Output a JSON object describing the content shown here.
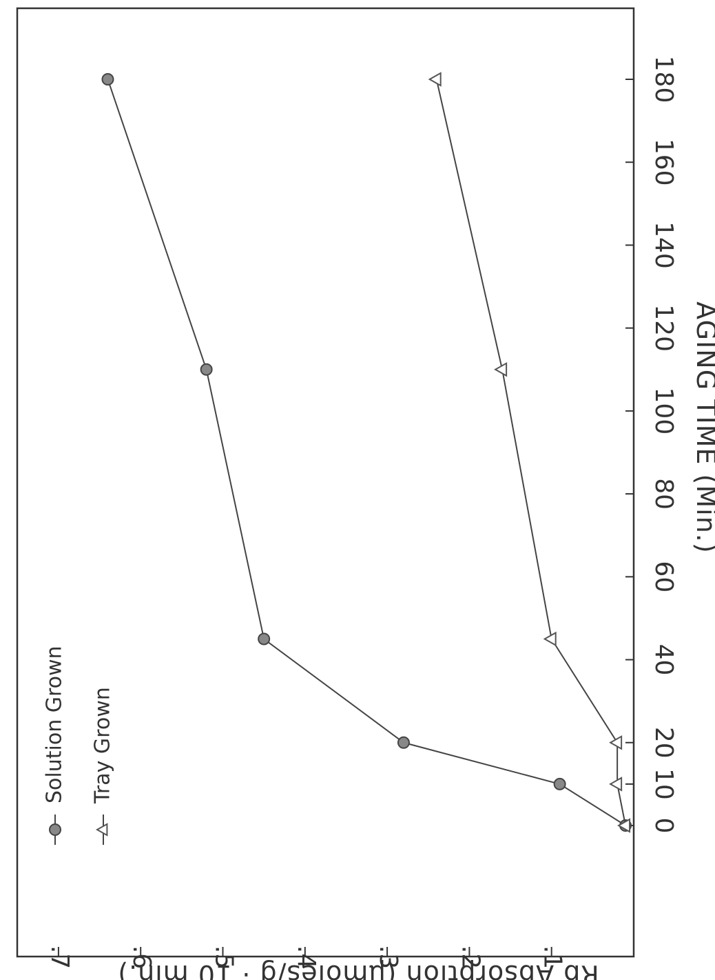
{
  "chart_data": {
    "type": "line",
    "title": "",
    "xlabel": "AGING TIME (Min.)",
    "ylabel": "Rb Absorption (μmoles/g · 10 min.)",
    "x_ticks": [
      0,
      10,
      20,
      40,
      60,
      80,
      100,
      120,
      140,
      160,
      180
    ],
    "x_tick_labels": [
      "0",
      "10",
      "20",
      "40",
      "60",
      "80",
      "100",
      "120",
      "140",
      "160",
      "180"
    ],
    "y_ticks": [
      0.1,
      0.2,
      0.3,
      0.4,
      0.5,
      0.6,
      0.7
    ],
    "y_tick_labels": [
      ".1",
      ".2",
      ".3",
      ".4",
      ".5",
      ".6",
      ".7"
    ],
    "xlim": [
      -8,
      195
    ],
    "ylim": [
      0,
      0.75
    ],
    "grid": false,
    "orientation": "rotated 90 degrees clockwise",
    "legend_position": "top-left",
    "series": [
      {
        "name": "Solution Grown",
        "marker": "circle-filled",
        "color": "#555555",
        "x": [
          0,
          10,
          20,
          45,
          110,
          180
        ],
        "y": [
          0.01,
          0.09,
          0.28,
          0.45,
          0.52,
          0.64
        ]
      },
      {
        "name": "Tray Grown",
        "marker": "triangle",
        "color": "#666666",
        "x": [
          0,
          10,
          20,
          45,
          110,
          180
        ],
        "y": [
          0.01,
          0.02,
          0.02,
          0.1,
          0.16,
          0.24
        ]
      }
    ]
  }
}
